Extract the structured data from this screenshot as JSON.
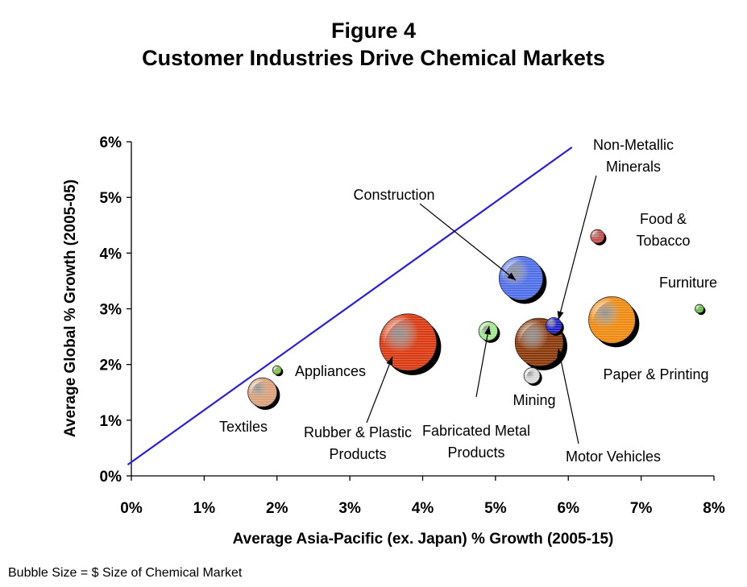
{
  "chart_data": {
    "type": "bubble",
    "title": "Figure 4",
    "subtitle": "Customer Industries Drive Chemical Markets",
    "xlabel": "Average Asia-Pacific (ex. Japan) % Growth (2005-15)",
    "ylabel": "Average Global % Growth (2005-05)",
    "xlim": [
      0,
      8
    ],
    "ylim": [
      0,
      6
    ],
    "x_ticks": [
      "0%",
      "1%",
      "2%",
      "3%",
      "4%",
      "5%",
      "6%",
      "7%",
      "8%"
    ],
    "y_ticks": [
      "0%",
      "1%",
      "2%",
      "3%",
      "4%",
      "5%",
      "6%"
    ],
    "footnote": "Bubble Size = $ Size of Chemical Market",
    "reference_line": {
      "from": [
        -0.05,
        0.2
      ],
      "to": [
        6.05,
        5.9
      ],
      "color": "#2a1fd6"
    },
    "points": [
      {
        "label": "Textiles",
        "x": 1.8,
        "y": 1.5,
        "size": 0.4,
        "color": "#d9a07a"
      },
      {
        "label": "Appliances",
        "x": 2.0,
        "y": 1.9,
        "size": 0.12,
        "color": "#7fc23a"
      },
      {
        "label": "Rubber & Plastic Products",
        "x": 3.8,
        "y": 2.4,
        "size": 0.78,
        "color": "#d93a12"
      },
      {
        "label": "Construction",
        "x": 5.35,
        "y": 3.55,
        "size": 0.6,
        "color": "#4f6fe8"
      },
      {
        "label": "Fabricated Metal Products",
        "x": 4.9,
        "y": 2.6,
        "size": 0.26,
        "color": "#9ee88a"
      },
      {
        "label": "Motor Vehicles",
        "x": 5.6,
        "y": 2.4,
        "size": 0.66,
        "color": "#8a3a0a"
      },
      {
        "label": "Non-Metallic Minerals",
        "x": 5.8,
        "y": 2.7,
        "size": 0.22,
        "color": "#2222cc"
      },
      {
        "label": "Mining",
        "x": 5.5,
        "y": 1.8,
        "size": 0.22,
        "color": "#d8d8d8"
      },
      {
        "label": "Paper & Printing",
        "x": 6.6,
        "y": 2.8,
        "size": 0.64,
        "color": "#ef8a10"
      },
      {
        "label": "Food & Tobacco",
        "x": 6.4,
        "y": 4.3,
        "size": 0.19,
        "color": "#c94a4a"
      },
      {
        "label": "Furniture",
        "x": 7.8,
        "y": 3.0,
        "size": 0.12,
        "color": "#5fc33a"
      }
    ],
    "annotations": [
      {
        "lines": [
          "Construction"
        ],
        "target": "Construction",
        "arrow": true
      },
      {
        "lines": [
          "Non-Metallic",
          "Minerals"
        ],
        "target": "Non-Metallic Minerals",
        "arrow": true
      },
      {
        "lines": [
          "Food &",
          "Tobacco"
        ],
        "target": "Food & Tobacco",
        "arrow": false
      },
      {
        "lines": [
          "Furniture"
        ],
        "target": "Furniture",
        "arrow": false
      },
      {
        "lines": [
          "Paper & Printing"
        ],
        "target": "Paper & Printing",
        "arrow": false
      },
      {
        "lines": [
          "Appliances"
        ],
        "target": "Appliances",
        "arrow": false
      },
      {
        "lines": [
          "Textiles"
        ],
        "target": "Textiles",
        "arrow": false
      },
      {
        "lines": [
          "Rubber & Plastic",
          "Products"
        ],
        "target": "Rubber & Plastic Products",
        "arrow": true
      },
      {
        "lines": [
          "Fabricated Metal",
          "Products"
        ],
        "target": "Fabricated Metal Products",
        "arrow": true
      },
      {
        "lines": [
          "Mining"
        ],
        "target": "Mining",
        "arrow": false
      },
      {
        "lines": [
          "Motor Vehicles"
        ],
        "target": "Motor Vehicles",
        "arrow": true
      }
    ]
  }
}
